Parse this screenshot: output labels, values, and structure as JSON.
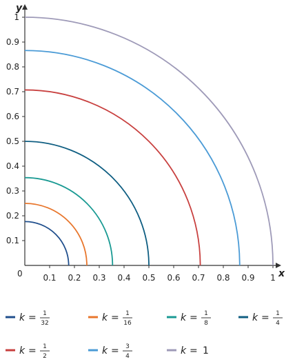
{
  "chart_data": {
    "type": "line",
    "xlabel": "x",
    "ylabel": "y",
    "xlim": [
      0,
      1
    ],
    "ylim": [
      0,
      1
    ],
    "origin_label": "0",
    "x_ticks": [
      "0.1",
      "0.2",
      "0.3",
      "0.4",
      "0.5",
      "0.6",
      "0.7",
      "0.8",
      "0.9",
      "1"
    ],
    "y_ticks": [
      "0.1",
      "0.2",
      "0.3",
      "0.4",
      "0.5",
      "0.6",
      "0.7",
      "0.8",
      "0.9",
      "1"
    ],
    "series": [
      {
        "name": "k = 1/32",
        "k_num": "1",
        "k_den": "32",
        "radius": 0.1768,
        "color": "#1f4e8c"
      },
      {
        "name": "k = 1/16",
        "k_num": "1",
        "k_den": "16",
        "radius": 0.25,
        "color": "#e8762c"
      },
      {
        "name": "k = 1/8",
        "k_num": "1",
        "k_den": "8",
        "radius": 0.3536,
        "color": "#1a9a93"
      },
      {
        "name": "k = 1/4",
        "k_num": "1",
        "k_den": "4",
        "radius": 0.5,
        "color": "#0f5e82"
      },
      {
        "name": "k = 1/2",
        "k_num": "1",
        "k_den": "2",
        "radius": 0.7071,
        "color": "#c8403f"
      },
      {
        "name": "k = 3/4",
        "k_num": "3",
        "k_den": "4",
        "radius": 0.866,
        "color": "#4b9bd6"
      },
      {
        "name": "k = 1",
        "k_value": "1",
        "radius": 1.0,
        "color": "#9e9ab8"
      }
    ],
    "legend_k": "k",
    "legend_eq": "=",
    "legend_placement": "bottom",
    "grid": false
  }
}
